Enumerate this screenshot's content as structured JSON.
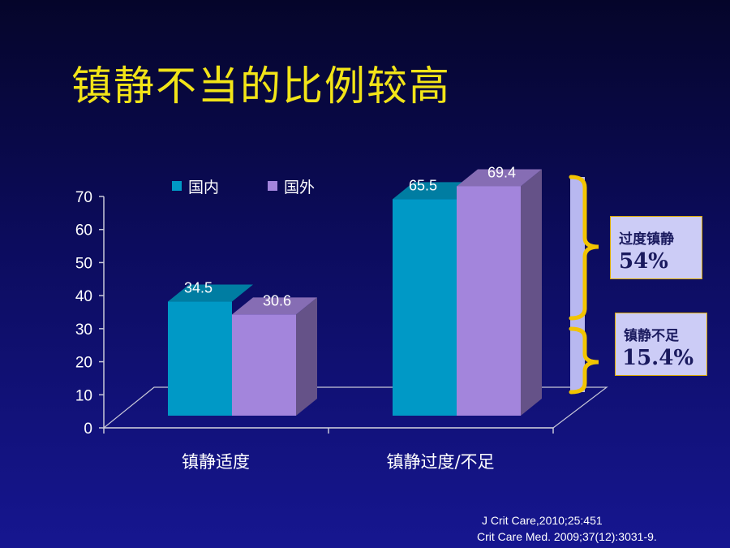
{
  "title": "镇静不当的比例较高",
  "chart_data": {
    "type": "bar",
    "categories": [
      "镇静适度",
      "镇静过度/不足"
    ],
    "series": [
      {
        "name": "国内",
        "values": [
          34.5,
          65.5
        ],
        "color": "#0099c6"
      },
      {
        "name": "国外",
        "values": [
          30.6,
          69.4
        ],
        "color": "#a385dc"
      }
    ],
    "ylim": [
      0,
      70
    ],
    "yticks": [
      0,
      10,
      20,
      30,
      40,
      50,
      60,
      70
    ],
    "ylabel": "",
    "legend_position": "top"
  },
  "callouts": [
    {
      "label": "过度镇静",
      "value": "54%"
    },
    {
      "label": "镇静不足",
      "value": "15.4%"
    }
  ],
  "references": [
    "J Crit Care,2010;25:451",
    "Crit Care Med. 2009;37(12):3031-9."
  ],
  "colors": {
    "title": "#f2e418",
    "bracket": "#f2c400",
    "callout_bg": "#ccccf6",
    "text": "#ffffff"
  }
}
